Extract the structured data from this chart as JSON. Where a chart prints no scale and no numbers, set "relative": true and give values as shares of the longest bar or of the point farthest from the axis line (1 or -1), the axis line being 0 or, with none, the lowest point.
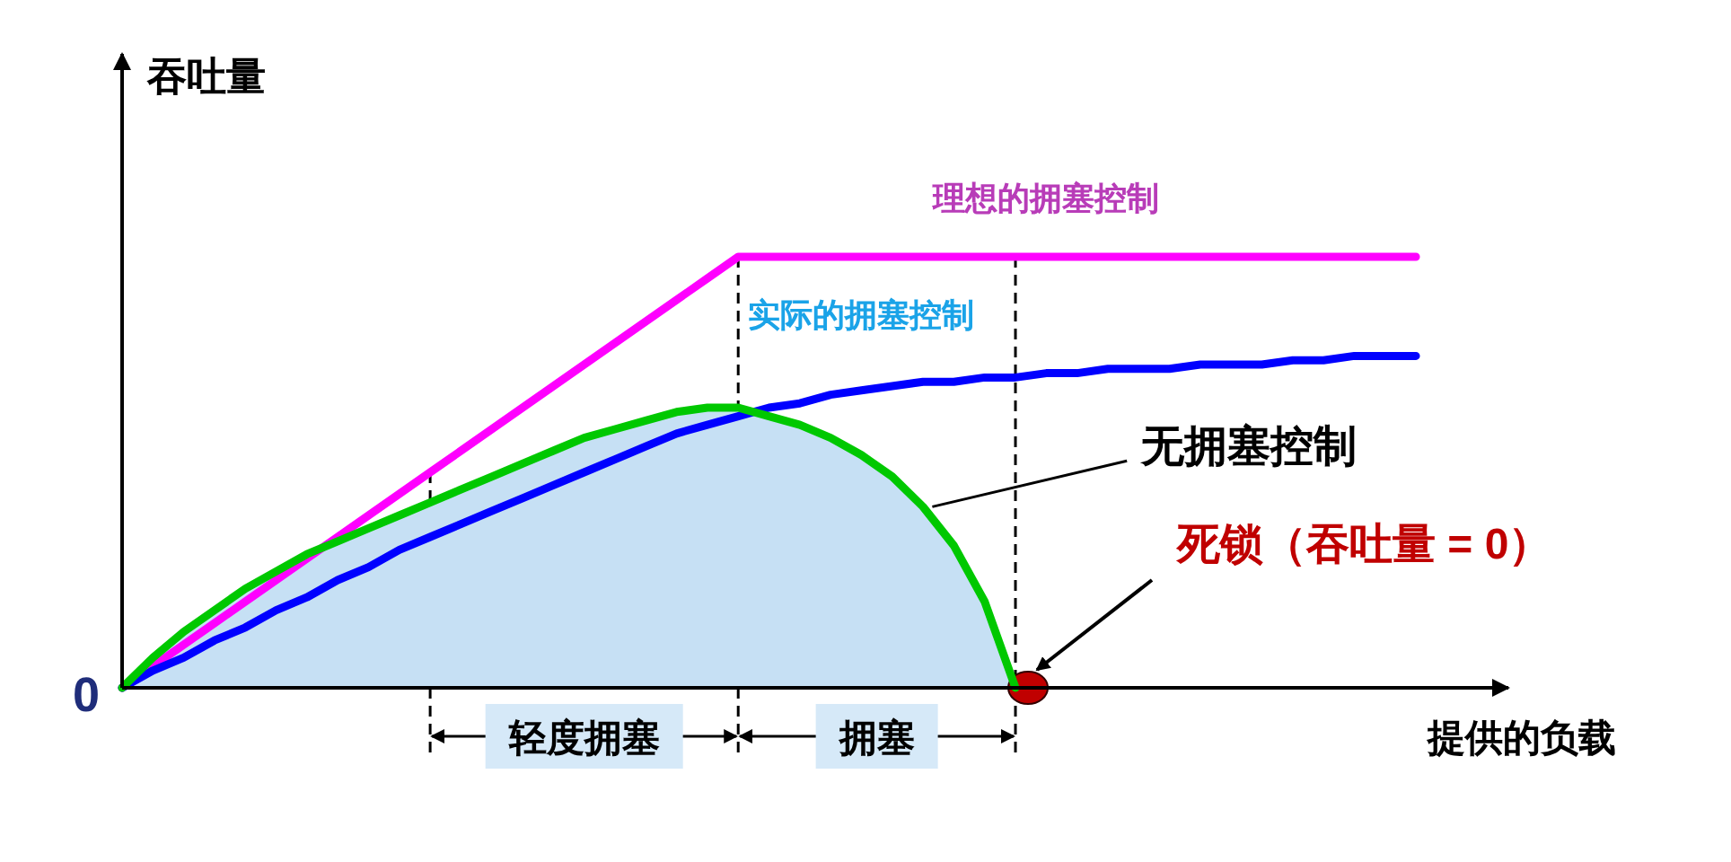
{
  "chart_data": {
    "type": "line",
    "relative": true,
    "xlabel": "提供的负载",
    "ylabel": "吞吐量",
    "categories": [
      null,
      null,
      null,
      null,
      null,
      null,
      null,
      null,
      null,
      null,
      null,
      null,
      null,
      null,
      null,
      null,
      null,
      null,
      null,
      null,
      null,
      null,
      null,
      null,
      null,
      null,
      null,
      null,
      null,
      null,
      null,
      null,
      null,
      null,
      null,
      null,
      null,
      null,
      null,
      null,
      null,
      null,
      null
    ],
    "series": [
      {
        "name": "理想的拥塞控制",
        "color": "#ff00ff",
        "values": [
          0,
          0.05,
          0.1,
          0.15,
          0.2,
          0.25,
          0.3,
          0.35,
          0.4,
          0.45,
          0.5,
          0.55,
          0.6,
          0.65,
          0.7,
          0.75,
          0.8,
          0.85,
          0.9,
          0.95,
          1,
          1,
          1,
          1,
          1,
          1,
          1,
          1,
          1,
          1,
          1,
          1,
          1,
          1,
          1,
          1,
          1,
          1,
          1,
          1,
          1,
          1,
          1
        ]
      },
      {
        "name": "实际的拥塞控制",
        "color": "#0000ff",
        "values": [
          0,
          0.04,
          0.07,
          0.11,
          0.14,
          0.18,
          0.21,
          0.25,
          0.28,
          0.32,
          0.35,
          0.38,
          0.41,
          0.44,
          0.47,
          0.5,
          0.53,
          0.56,
          0.59,
          0.61,
          0.63,
          0.65,
          0.66,
          0.68,
          0.69,
          0.7,
          0.71,
          0.71,
          0.72,
          0.72,
          0.73,
          0.73,
          0.74,
          0.74,
          0.74,
          0.75,
          0.75,
          0.75,
          0.76,
          0.76,
          0.77,
          0.77,
          0.77
        ]
      },
      {
        "name": "无拥塞控制",
        "color": "#00c800",
        "values": [
          0,
          0.07,
          0.13,
          0.18,
          0.23,
          0.27,
          0.31,
          0.34,
          0.37,
          0.4,
          0.43,
          0.46,
          0.49,
          0.52,
          0.55,
          0.58,
          0.6,
          0.62,
          0.64,
          0.65,
          0.65,
          0.63,
          0.61,
          0.58,
          0.54,
          0.49,
          0.42,
          0.33,
          0.2,
          0,
          null,
          null,
          null,
          null,
          null,
          null,
          null,
          null,
          null,
          null,
          null,
          null,
          null
        ]
      }
    ],
    "annotations": [
      "0",
      "死锁（吞吐量 = 0）",
      "轻度拥塞",
      "拥塞"
    ]
  }
}
